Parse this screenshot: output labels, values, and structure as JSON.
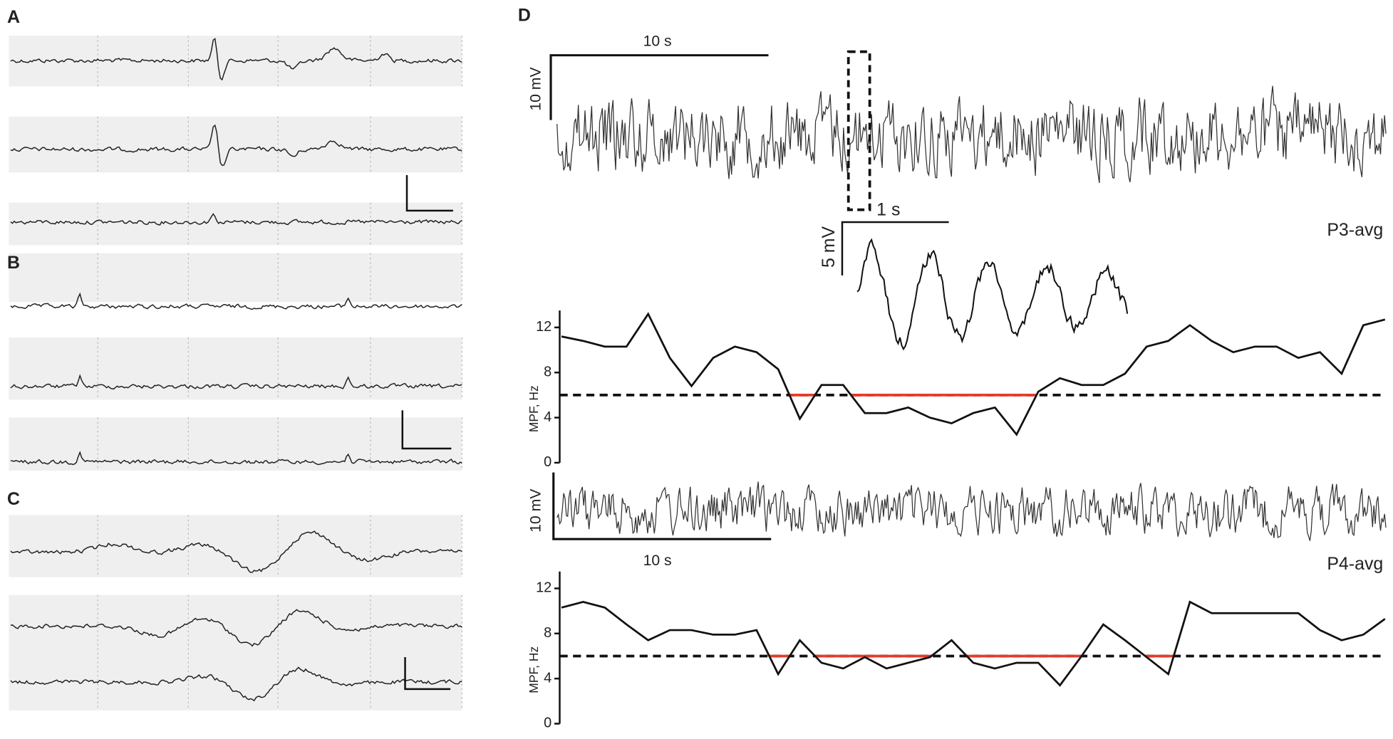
{
  "figure": {
    "panel_labels": [
      "A",
      "B",
      "C",
      "D"
    ],
    "top_time_scale": "10 s",
    "top_volt_scale": "10 mV",
    "inset_time_scale": "1 s",
    "inset_volt_scale": "5 mV",
    "top_trace_label": "P3-avg",
    "bottom_volt_scale": "10 mV",
    "bottom_time_scale": "10 s",
    "bottom_trace_label": "P4-avg"
  },
  "chart_data": [
    {
      "type": "line",
      "ylabel": "MPF, Hz",
      "ylim": [
        0,
        13.5
      ],
      "yticks": [
        0,
        4,
        8,
        12
      ],
      "threshold": 6,
      "series": [
        {
          "color": "#111111",
          "values": [
            11.2,
            10.8,
            10.3,
            10.3,
            13.2,
            9.3,
            6.8,
            9.3,
            10.3,
            9.8,
            8.3,
            3.9,
            6.9,
            6.9,
            4.4,
            4.4,
            4.9,
            4.0,
            3.5,
            4.4,
            4.9,
            2.5,
            6.3,
            7.5,
            6.9,
            6.9,
            7.9,
            10.3,
            10.8,
            12.2,
            10.8,
            9.8,
            10.3,
            10.3,
            9.3,
            9.8,
            7.9,
            12.2,
            12.7
          ]
        }
      ],
      "below_color": "#e53b2c"
    },
    {
      "type": "line",
      "ylabel": "MPF, Hz",
      "ylim": [
        0,
        13.5
      ],
      "yticks": [
        0,
        4,
        8,
        12
      ],
      "threshold": 6,
      "series": [
        {
          "color": "#111111",
          "values": [
            10.3,
            10.8,
            10.3,
            8.8,
            7.4,
            8.3,
            8.3,
            7.9,
            7.9,
            8.3,
            4.4,
            7.4,
            5.4,
            4.9,
            5.9,
            4.9,
            5.4,
            5.9,
            7.4,
            5.4,
            4.9,
            5.4,
            5.4,
            3.4,
            6.0,
            8.8,
            7.4,
            5.9,
            4.4,
            10.8,
            9.8,
            9.8,
            9.8,
            9.8,
            9.8,
            8.3,
            7.4,
            7.9,
            9.3
          ]
        }
      ],
      "below_color": "#e53b2c"
    }
  ]
}
